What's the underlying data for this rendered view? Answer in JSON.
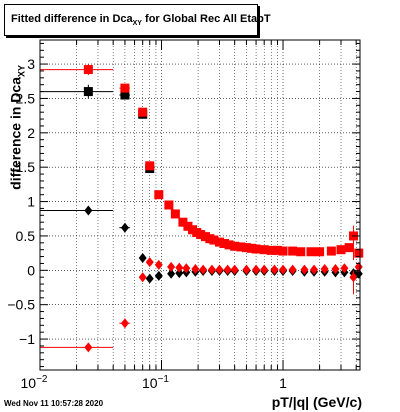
{
  "title_parts": {
    "pre": "Fitted difference in Dca",
    "sub": "XY",
    "post": " for Global Rec All EtapT"
  },
  "ylabel_parts": {
    "pre": "difference in Dca",
    "sub": "XY"
  },
  "xlabel": "pT/|q| (GeV/c)",
  "timestamp": "Wed Nov 11 10:57:28 2020",
  "colors": {
    "black_series": "#000000",
    "red_series": "#ff0000",
    "grid": "#000000"
  },
  "chart_data": {
    "type": "scatter",
    "x_scale": "log",
    "xlim": [
      0.01,
      4.3
    ],
    "ylim": [
      -1.45,
      3.35
    ],
    "grid": true,
    "x_ticks": [
      {
        "v": 0.01,
        "label": "10",
        "sup": "-2"
      },
      {
        "v": 0.1,
        "label": "10",
        "sup": "-1"
      },
      {
        "v": 1,
        "label": "1",
        "sup": ""
      }
    ],
    "y_ticks": [
      -1,
      -0.5,
      0,
      0.5,
      1,
      1.5,
      2,
      2.5,
      3
    ],
    "series": [
      {
        "name": "",
        "marker": "square",
        "color": "#000000",
        "points": [
          {
            "x": 0.025,
            "y": 2.6,
            "xlo": 0.01,
            "xhi": 0.04,
            "elo": 0.1,
            "ehi": 0.1
          },
          {
            "x": 0.05,
            "y": 2.55,
            "xlo": 0.045,
            "xhi": 0.055
          },
          {
            "x": 0.07,
            "y": 2.27
          },
          {
            "x": 0.08,
            "y": 1.48
          }
        ]
      },
      {
        "name": "",
        "marker": "square",
        "color": "#ff0000",
        "points": [
          {
            "x": 0.025,
            "y": 2.92,
            "xlo": 0.01,
            "xhi": 0.04,
            "elo": 0.08,
            "ehi": 0.08
          },
          {
            "x": 0.05,
            "y": 2.65,
            "xlo": 0.045,
            "xhi": 0.055
          },
          {
            "x": 0.07,
            "y": 2.3
          },
          {
            "x": 0.08,
            "y": 1.52
          },
          {
            "x": 0.095,
            "y": 1.1
          },
          {
            "x": 0.115,
            "y": 0.95
          },
          {
            "x": 0.13,
            "y": 0.82
          },
          {
            "x": 0.15,
            "y": 0.7
          },
          {
            "x": 0.165,
            "y": 0.64
          },
          {
            "x": 0.18,
            "y": 0.59
          },
          {
            "x": 0.195,
            "y": 0.55
          },
          {
            "x": 0.21,
            "y": 0.52
          },
          {
            "x": 0.23,
            "y": 0.49
          },
          {
            "x": 0.25,
            "y": 0.46
          },
          {
            "x": 0.27,
            "y": 0.44
          },
          {
            "x": 0.3,
            "y": 0.41
          },
          {
            "x": 0.33,
            "y": 0.39
          },
          {
            "x": 0.36,
            "y": 0.37
          },
          {
            "x": 0.4,
            "y": 0.35
          },
          {
            "x": 0.45,
            "y": 0.34
          },
          {
            "x": 0.5,
            "y": 0.33
          },
          {
            "x": 0.55,
            "y": 0.32
          },
          {
            "x": 0.6,
            "y": 0.31
          },
          {
            "x": 0.7,
            "y": 0.3
          },
          {
            "x": 0.8,
            "y": 0.29
          },
          {
            "x": 0.9,
            "y": 0.29
          },
          {
            "x": 1.0,
            "y": 0.28
          },
          {
            "x": 1.2,
            "y": 0.28
          },
          {
            "x": 1.4,
            "y": 0.27
          },
          {
            "x": 1.7,
            "y": 0.27
          },
          {
            "x": 2.0,
            "y": 0.27
          },
          {
            "x": 2.5,
            "y": 0.28
          },
          {
            "x": 3.0,
            "y": 0.3
          },
          {
            "x": 3.5,
            "y": 0.33
          },
          {
            "x": 3.8,
            "y": 0.5,
            "elo": 0.35,
            "ehi": 0.15
          },
          {
            "x": 4.2,
            "y": 0.25
          }
        ]
      },
      {
        "name": "",
        "marker": "diamond",
        "color": "#000000",
        "points": [
          {
            "x": 0.025,
            "y": 0.87,
            "xlo": 0.01,
            "xhi": 0.04
          },
          {
            "x": 0.05,
            "y": 0.62,
            "xlo": 0.045,
            "xhi": 0.055
          },
          {
            "x": 0.07,
            "y": 0.18
          },
          {
            "x": 0.08,
            "y": -0.12
          },
          {
            "x": 0.095,
            "y": -0.08
          },
          {
            "x": 0.12,
            "y": -0.05
          },
          {
            "x": 0.14,
            "y": -0.04
          },
          {
            "x": 0.16,
            "y": -0.03
          },
          {
            "x": 0.19,
            "y": -0.02
          },
          {
            "x": 0.22,
            "y": -0.01
          },
          {
            "x": 0.26,
            "y": -0.01
          },
          {
            "x": 0.3,
            "y": -0.01
          },
          {
            "x": 0.35,
            "y": -0.01
          },
          {
            "x": 0.4,
            "y": -0.01
          },
          {
            "x": 0.5,
            "y": -0.01
          },
          {
            "x": 0.6,
            "y": -0.01
          },
          {
            "x": 0.7,
            "y": -0.01
          },
          {
            "x": 0.85,
            "y": -0.01
          },
          {
            "x": 1.0,
            "y": -0.01
          },
          {
            "x": 1.2,
            "y": -0.01
          },
          {
            "x": 1.5,
            "y": -0.02
          },
          {
            "x": 1.8,
            "y": -0.02
          },
          {
            "x": 2.2,
            "y": -0.02
          },
          {
            "x": 2.7,
            "y": -0.03
          },
          {
            "x": 3.2,
            "y": -0.03
          },
          {
            "x": 3.8,
            "y": -0.04
          },
          {
            "x": 4.2,
            "y": -0.05
          }
        ]
      },
      {
        "name": "",
        "marker": "diamond",
        "color": "#ff0000",
        "points": [
          {
            "x": 0.025,
            "y": -1.12,
            "xlo": 0.01,
            "xhi": 0.04
          },
          {
            "x": 0.05,
            "y": -0.77,
            "xlo": 0.045,
            "xhi": 0.055
          },
          {
            "x": 0.07,
            "y": -0.1
          },
          {
            "x": 0.08,
            "y": 0.12
          },
          {
            "x": 0.095,
            "y": 0.08
          },
          {
            "x": 0.12,
            "y": 0.05
          },
          {
            "x": 0.14,
            "y": 0.04
          },
          {
            "x": 0.16,
            "y": 0.03
          },
          {
            "x": 0.19,
            "y": 0.02
          },
          {
            "x": 0.22,
            "y": 0.01
          },
          {
            "x": 0.26,
            "y": 0.01
          },
          {
            "x": 0.3,
            "y": 0.01
          },
          {
            "x": 0.35,
            "y": 0.01
          },
          {
            "x": 0.4,
            "y": 0.01
          },
          {
            "x": 0.5,
            "y": 0.01
          },
          {
            "x": 0.6,
            "y": 0.01
          },
          {
            "x": 0.7,
            "y": 0.01
          },
          {
            "x": 0.85,
            "y": 0.01
          },
          {
            "x": 1.0,
            "y": 0.01
          },
          {
            "x": 1.2,
            "y": 0.01
          },
          {
            "x": 1.5,
            "y": 0.01
          },
          {
            "x": 1.8,
            "y": 0.01
          },
          {
            "x": 2.2,
            "y": 0.02
          },
          {
            "x": 2.7,
            "y": 0.02
          },
          {
            "x": 3.2,
            "y": 0.03
          },
          {
            "x": 3.8,
            "y": -0.1,
            "elo": 0.25,
            "ehi": 0.1
          },
          {
            "x": 4.2,
            "y": 0.05
          }
        ]
      }
    ]
  }
}
